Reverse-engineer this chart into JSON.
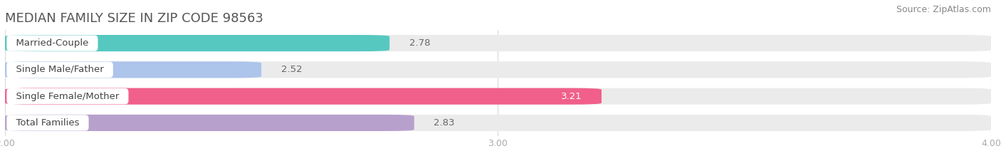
{
  "title": "MEDIAN FAMILY SIZE IN ZIP CODE 98563",
  "source": "Source: ZipAtlas.com",
  "categories": [
    "Married-Couple",
    "Single Male/Father",
    "Single Female/Mother",
    "Total Families"
  ],
  "values": [
    2.78,
    2.52,
    3.21,
    2.83
  ],
  "bar_colors": [
    "#56c8c0",
    "#adc4eb",
    "#f0608a",
    "#b8a0cc"
  ],
  "bar_bg_color": "#ebebeb",
  "xlim": [
    2.0,
    4.0
  ],
  "xmin": 2.0,
  "xmax": 4.0,
  "xticks": [
    2.0,
    3.0,
    4.0
  ],
  "xtick_labels": [
    "2.00",
    "3.00",
    "4.00"
  ],
  "value_label_color_default": "#666666",
  "value_label_color_highlight": "#ffffff",
  "highlight_index": 2,
  "title_fontsize": 13,
  "source_fontsize": 9,
  "bar_label_fontsize": 9.5,
  "value_fontsize": 9.5,
  "tick_fontsize": 9,
  "background_color": "#ffffff",
  "bar_height": 0.62,
  "grid_color": "#d8d8d8",
  "label_color": "#444444"
}
